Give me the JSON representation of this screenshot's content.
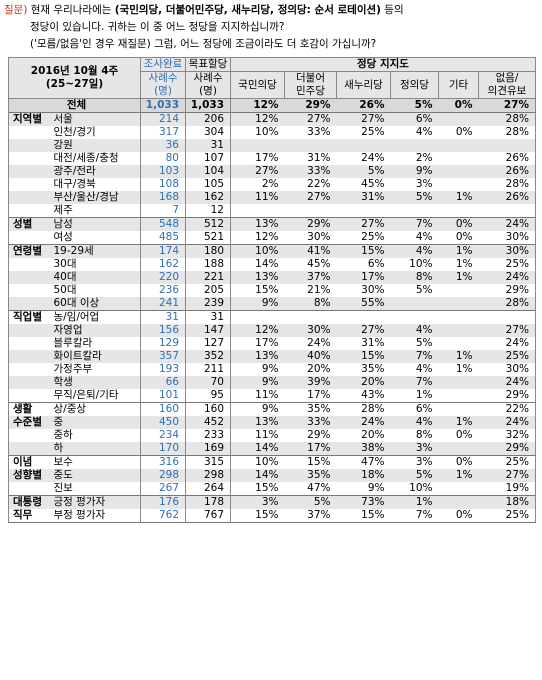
{
  "question": {
    "tag": "질문)",
    "line1_prefix": "현재 우리나라에는 ",
    "line1_bold": "(국민의당, 더불어민주당, 새누리당, 정의당: 순서 로테이션)",
    "line1_suffix": " 등의",
    "line2": "정당이 있습니다. 귀하는 이 중 어느 정당을 지지하십니까?",
    "line3": "('모름/없음'인 경우 재질문) 그럼, 어느 정당에 조금이라도 더 호감이 가십니까?"
  },
  "header": {
    "period": "2016년 10월 4주",
    "dates": "(25~27일)",
    "survey_count": "조사완료",
    "survey_sub1": "사례수",
    "survey_sub2": "(명)",
    "weight_count": "목표할당",
    "weight_sub1": "사례수",
    "weight_sub2": "(명)",
    "group_label": "정당 지지도",
    "parties": [
      "국민의당",
      "더불어\n민주당",
      "새누리당",
      "정의당",
      "기타",
      "없음/\n의견유보"
    ]
  },
  "rows": [
    {
      "cat": "전체",
      "sub": "",
      "n1": "1,033",
      "n2": "1,033",
      "v": [
        "12%",
        "29%",
        "26%",
        "5%",
        "0%",
        "27%"
      ],
      "total": true
    },
    {
      "cat": "지역별",
      "sub": "서울",
      "n1": "214",
      "n2": "206",
      "v": [
        "12%",
        "27%",
        "27%",
        "6%",
        "",
        "28%"
      ],
      "sep": true
    },
    {
      "cat": "",
      "sub": "인천/경기",
      "n1": "317",
      "n2": "304",
      "v": [
        "10%",
        "33%",
        "25%",
        "4%",
        "0%",
        "28%"
      ]
    },
    {
      "cat": "",
      "sub": "강원",
      "n1": "36",
      "n2": "31",
      "v": [
        "",
        "",
        "",
        "",
        "",
        ""
      ]
    },
    {
      "cat": "",
      "sub": "대전/세종/충청",
      "n1": "80",
      "n2": "107",
      "v": [
        "17%",
        "31%",
        "24%",
        "2%",
        "",
        "26%"
      ]
    },
    {
      "cat": "",
      "sub": "광주/전라",
      "n1": "103",
      "n2": "104",
      "v": [
        "27%",
        "33%",
        "5%",
        "9%",
        "",
        "26%"
      ]
    },
    {
      "cat": "",
      "sub": "대구/경북",
      "n1": "108",
      "n2": "105",
      "v": [
        "2%",
        "22%",
        "45%",
        "3%",
        "",
        "28%"
      ]
    },
    {
      "cat": "",
      "sub": "부산/울산/경남",
      "n1": "168",
      "n2": "162",
      "v": [
        "11%",
        "27%",
        "31%",
        "5%",
        "1%",
        "26%"
      ]
    },
    {
      "cat": "",
      "sub": "제주",
      "n1": "7",
      "n2": "12",
      "v": [
        "",
        "",
        "",
        "",
        "",
        ""
      ]
    },
    {
      "cat": "성별",
      "sub": "남성",
      "n1": "548",
      "n2": "512",
      "v": [
        "13%",
        "29%",
        "27%",
        "7%",
        "0%",
        "24%"
      ],
      "sep": true
    },
    {
      "cat": "",
      "sub": "여성",
      "n1": "485",
      "n2": "521",
      "v": [
        "12%",
        "30%",
        "25%",
        "4%",
        "0%",
        "30%"
      ]
    },
    {
      "cat": "연령별",
      "sub": "19-29세",
      "n1": "174",
      "n2": "180",
      "v": [
        "10%",
        "41%",
        "15%",
        "4%",
        "1%",
        "30%"
      ],
      "sep": true
    },
    {
      "cat": "",
      "sub": "30대",
      "n1": "162",
      "n2": "188",
      "v": [
        "14%",
        "45%",
        "6%",
        "10%",
        "1%",
        "25%"
      ]
    },
    {
      "cat": "",
      "sub": "40대",
      "n1": "220",
      "n2": "221",
      "v": [
        "13%",
        "37%",
        "17%",
        "8%",
        "1%",
        "24%"
      ]
    },
    {
      "cat": "",
      "sub": "50대",
      "n1": "236",
      "n2": "205",
      "v": [
        "15%",
        "21%",
        "30%",
        "5%",
        "",
        "29%"
      ]
    },
    {
      "cat": "",
      "sub": "60대 이상",
      "n1": "241",
      "n2": "239",
      "v": [
        "9%",
        "8%",
        "55%",
        "",
        "",
        "28%"
      ]
    },
    {
      "cat": "직업별",
      "sub": "농/임/어업",
      "n1": "31",
      "n2": "31",
      "v": [
        "",
        "",
        "",
        "",
        "",
        ""
      ],
      "sep": true
    },
    {
      "cat": "",
      "sub": "자영업",
      "n1": "156",
      "n2": "147",
      "v": [
        "12%",
        "30%",
        "27%",
        "4%",
        "",
        "27%"
      ]
    },
    {
      "cat": "",
      "sub": "블루칼라",
      "n1": "129",
      "n2": "127",
      "v": [
        "17%",
        "24%",
        "31%",
        "5%",
        "",
        "24%"
      ]
    },
    {
      "cat": "",
      "sub": "화이트칼라",
      "n1": "357",
      "n2": "352",
      "v": [
        "13%",
        "40%",
        "15%",
        "7%",
        "1%",
        "25%"
      ]
    },
    {
      "cat": "",
      "sub": "가정주부",
      "n1": "193",
      "n2": "211",
      "v": [
        "9%",
        "20%",
        "35%",
        "4%",
        "1%",
        "30%"
      ]
    },
    {
      "cat": "",
      "sub": "학생",
      "n1": "66",
      "n2": "70",
      "v": [
        "9%",
        "39%",
        "20%",
        "7%",
        "",
        "24%"
      ]
    },
    {
      "cat": "",
      "sub": "무직/은퇴/기타",
      "n1": "101",
      "n2": "95",
      "v": [
        "11%",
        "17%",
        "43%",
        "1%",
        "",
        "29%"
      ]
    },
    {
      "cat": "생활",
      "sub": "상/중상",
      "n1": "160",
      "n2": "160",
      "v": [
        "9%",
        "35%",
        "28%",
        "6%",
        "",
        "22%"
      ],
      "sep": true
    },
    {
      "cat": "수준별",
      "sub": "중",
      "n1": "450",
      "n2": "452",
      "v": [
        "13%",
        "33%",
        "24%",
        "4%",
        "1%",
        "24%"
      ]
    },
    {
      "cat": "",
      "sub": "중하",
      "n1": "234",
      "n2": "233",
      "v": [
        "11%",
        "29%",
        "20%",
        "8%",
        "0%",
        "32%"
      ]
    },
    {
      "cat": "",
      "sub": "하",
      "n1": "170",
      "n2": "169",
      "v": [
        "14%",
        "17%",
        "38%",
        "3%",
        "",
        "29%"
      ]
    },
    {
      "cat": "이념",
      "sub": "보수",
      "n1": "316",
      "n2": "315",
      "v": [
        "10%",
        "15%",
        "47%",
        "3%",
        "0%",
        "25%"
      ],
      "sep": true
    },
    {
      "cat": "성향별",
      "sub": "중도",
      "n1": "298",
      "n2": "298",
      "v": [
        "14%",
        "35%",
        "18%",
        "5%",
        "1%",
        "27%"
      ]
    },
    {
      "cat": "",
      "sub": "진보",
      "n1": "267",
      "n2": "264",
      "v": [
        "15%",
        "47%",
        "9%",
        "10%",
        "",
        "19%"
      ]
    },
    {
      "cat": "대통령",
      "sub": "긍정 평가자",
      "n1": "176",
      "n2": "178",
      "v": [
        "3%",
        "5%",
        "73%",
        "1%",
        "",
        "18%"
      ],
      "sep": true
    },
    {
      "cat": "직무",
      "sub": "부정 평가자",
      "n1": "762",
      "n2": "767",
      "v": [
        "15%",
        "37%",
        "15%",
        "7%",
        "0%",
        "25%"
      ]
    }
  ],
  "colors": {
    "accent_blue": "#2e6fb5",
    "tag_red": "#c0392b",
    "shade": "#e6e6e6"
  }
}
